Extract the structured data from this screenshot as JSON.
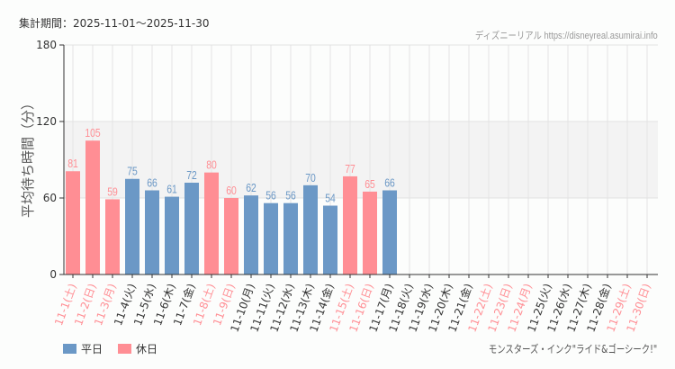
{
  "header": {
    "period": "集計期間：2025-11-01～2025-11-30",
    "source": "ディズニーリアル https://disneyreal.asumirai.info"
  },
  "legend": {
    "weekday_label": "平日",
    "holiday_label": "休日",
    "weekday_color": "#6b98c6",
    "holiday_color": "#ff8e94"
  },
  "attraction": "モンスターズ・インク\"ライド&ゴーシーク!\"",
  "chart_data": {
    "type": "bar",
    "title": "",
    "xlabel": "",
    "ylabel": "平均待ち時間（分）",
    "ylim": [
      0,
      180
    ],
    "yticks": [
      0,
      60,
      120,
      180
    ],
    "grid": true,
    "shaded_band": [
      60,
      120
    ],
    "legend_position": "bottom-left",
    "categories": [
      "11-1(土)",
      "11-2(日)",
      "11-3(月)",
      "11-4(火)",
      "11-5(水)",
      "11-6(木)",
      "11-7(金)",
      "11-8(土)",
      "11-9(日)",
      "11-10(月)",
      "11-11(火)",
      "11-12(水)",
      "11-13(木)",
      "11-14(金)",
      "11-15(土)",
      "11-16(日)",
      "11-17(月)",
      "11-18(火)",
      "11-19(水)",
      "11-20(木)",
      "11-21(金)",
      "11-22(土)",
      "11-23(日)",
      "11-24(月)",
      "11-25(火)",
      "11-26(水)",
      "11-27(木)",
      "11-28(金)",
      "11-29(土)",
      "11-30(日)"
    ],
    "day_type": [
      "holiday",
      "holiday",
      "holiday",
      "weekday",
      "weekday",
      "weekday",
      "weekday",
      "holiday",
      "holiday",
      "weekday",
      "weekday",
      "weekday",
      "weekday",
      "weekday",
      "holiday",
      "holiday",
      "weekday",
      "weekday",
      "weekday",
      "weekday",
      "weekday",
      "holiday",
      "holiday",
      "holiday",
      "weekday",
      "weekday",
      "weekday",
      "weekday",
      "holiday",
      "holiday"
    ],
    "values": [
      81,
      105,
      59,
      75,
      66,
      61,
      72,
      80,
      60,
      62,
      56,
      56,
      70,
      54,
      77,
      65,
      66,
      null,
      null,
      null,
      null,
      null,
      null,
      null,
      null,
      null,
      null,
      null,
      null,
      null
    ],
    "series": [
      {
        "name": "平日",
        "color": "#6b98c6"
      },
      {
        "name": "休日",
        "color": "#ff8e94"
      }
    ]
  }
}
